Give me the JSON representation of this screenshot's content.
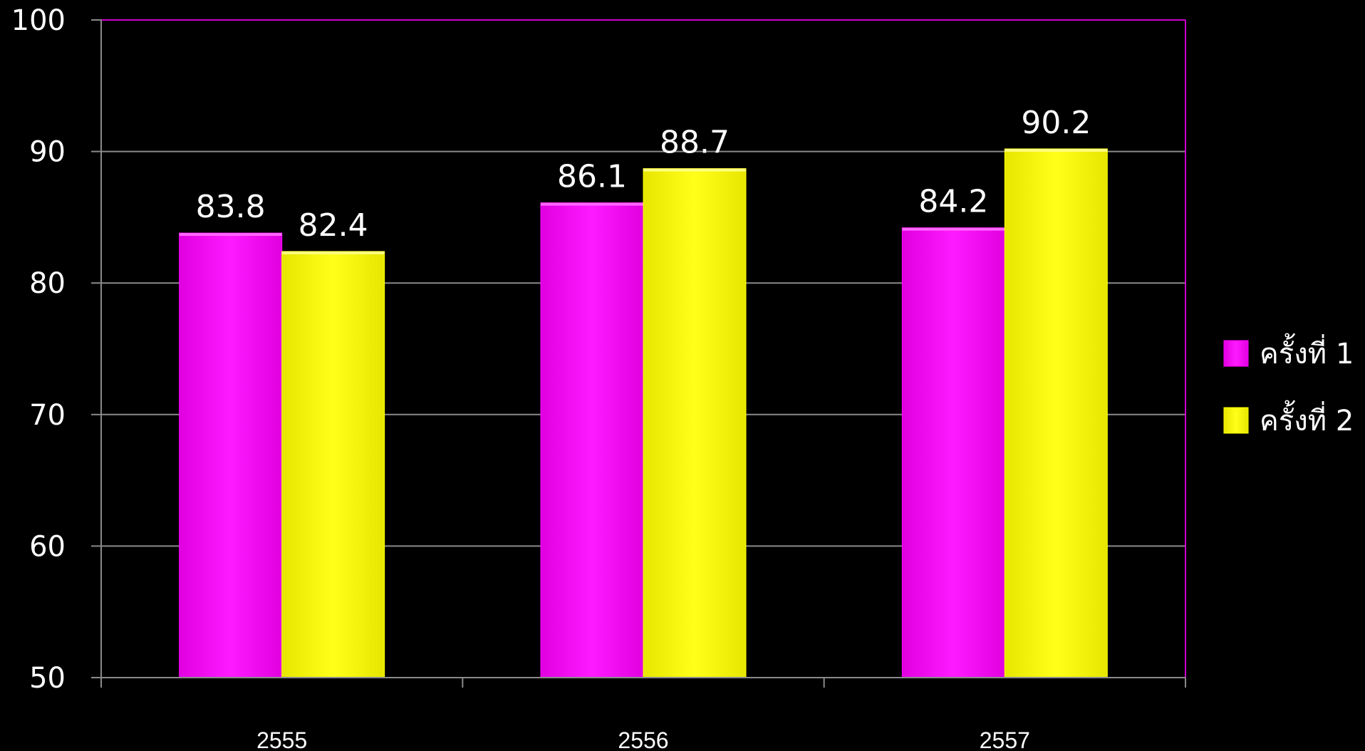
{
  "chart_data": {
    "type": "bar",
    "title": "",
    "xlabel": "",
    "ylabel": "",
    "categories": [
      "2555",
      "2556",
      "2557"
    ],
    "series": [
      {
        "name": "ครั้งที่ 1",
        "color": "#ff00ff",
        "values": [
          83.8,
          86.1,
          84.2
        ]
      },
      {
        "name": "ครั้งที่ 2",
        "color": "#ffff00",
        "values": [
          82.4,
          88.7,
          90.2
        ]
      }
    ],
    "ylim": [
      50,
      100
    ],
    "yticks": [
      50,
      60,
      70,
      80,
      90,
      100
    ],
    "grid": true,
    "legend": "right",
    "data_labels": true,
    "background": "#000000",
    "frame_color": "#cc00cc"
  }
}
